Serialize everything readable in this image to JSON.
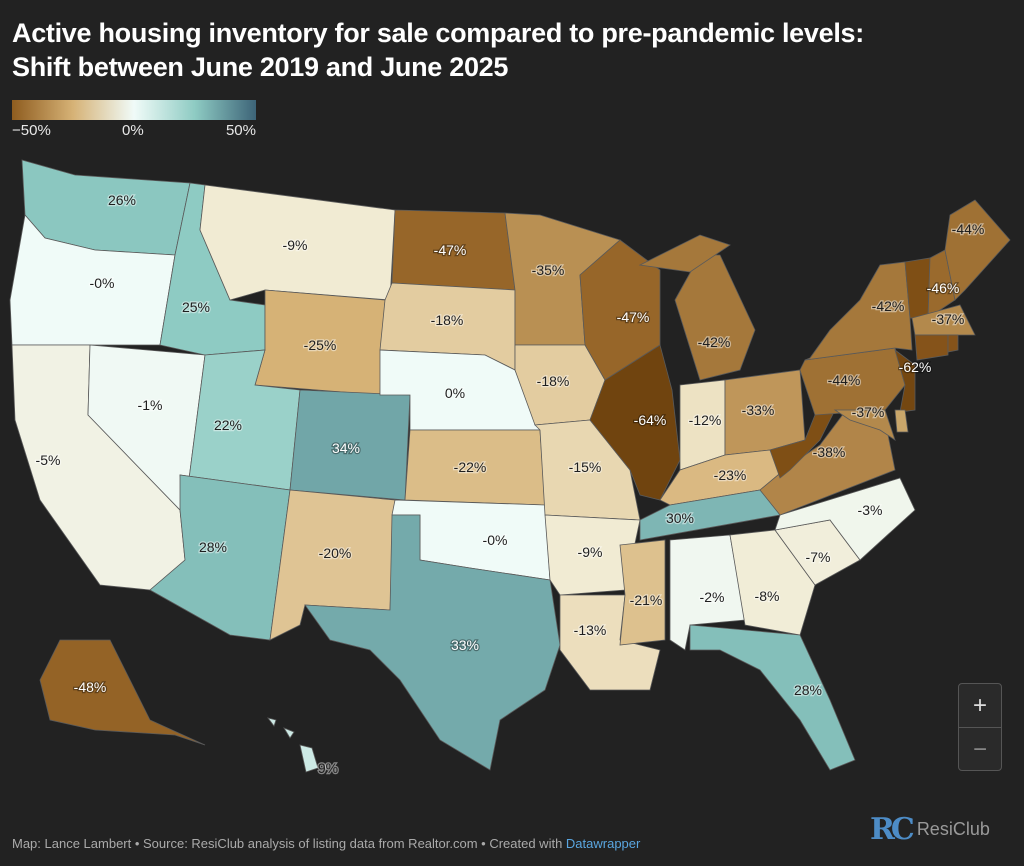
{
  "title": {
    "line1": "Active housing inventory for sale compared to pre-pandemic levels:",
    "line2": "Shift between June 2019 and June 2025"
  },
  "legend": {
    "min_label": "−50%",
    "mid_label": "0%",
    "max_label": "50%",
    "colors": [
      "#8e5c1f",
      "#d6b276",
      "#f0fbf8",
      "#8ecbc3",
      "#3d6478"
    ]
  },
  "chart_data": {
    "type": "choropleth",
    "title": "Active housing inventory for sale compared to pre-pandemic levels: Shift between June 2019 and June 2025",
    "scale_range": [
      -50,
      50
    ],
    "units": "% change",
    "states": [
      {
        "id": "WA",
        "value": 26,
        "label": "26%"
      },
      {
        "id": "OR",
        "value": 0,
        "label": "-0%"
      },
      {
        "id": "CA",
        "value": -5,
        "label": "-5%"
      },
      {
        "id": "NV",
        "value": -1,
        "label": "-1%"
      },
      {
        "id": "ID",
        "value": 25,
        "label": "25%"
      },
      {
        "id": "MT",
        "value": -9,
        "label": "-9%"
      },
      {
        "id": "WY",
        "value": -25,
        "label": "-25%"
      },
      {
        "id": "UT",
        "value": 22,
        "label": "22%"
      },
      {
        "id": "CO",
        "value": 34,
        "label": "34%"
      },
      {
        "id": "AZ",
        "value": 28,
        "label": "28%"
      },
      {
        "id": "NM",
        "value": -20,
        "label": "-20%"
      },
      {
        "id": "ND",
        "value": -47,
        "label": "-47%"
      },
      {
        "id": "SD",
        "value": -18,
        "label": "-18%"
      },
      {
        "id": "NE",
        "value": 0,
        "label": "0%"
      },
      {
        "id": "KS",
        "value": -22,
        "label": "-22%"
      },
      {
        "id": "OK",
        "value": 0,
        "label": "-0%"
      },
      {
        "id": "TX",
        "value": 33,
        "label": "33%"
      },
      {
        "id": "MN",
        "value": -35,
        "label": "-35%"
      },
      {
        "id": "IA",
        "value": -18,
        "label": "-18%"
      },
      {
        "id": "MO",
        "value": -15,
        "label": "-15%"
      },
      {
        "id": "AR",
        "value": -9,
        "label": "-9%"
      },
      {
        "id": "LA",
        "value": -13,
        "label": "-13%"
      },
      {
        "id": "WI",
        "value": -47,
        "label": "-47%"
      },
      {
        "id": "IL",
        "value": -64,
        "label": "-64%"
      },
      {
        "id": "MI",
        "value": -42,
        "label": "-42%"
      },
      {
        "id": "IN",
        "value": -12,
        "label": "-12%"
      },
      {
        "id": "OH",
        "value": -33,
        "label": "-33%"
      },
      {
        "id": "KY",
        "value": -23,
        "label": "-23%"
      },
      {
        "id": "TN",
        "value": 30,
        "label": "30%"
      },
      {
        "id": "MS",
        "value": -21,
        "label": "-21%"
      },
      {
        "id": "AL",
        "value": -2,
        "label": "-2%"
      },
      {
        "id": "GA",
        "value": -8,
        "label": "-8%"
      },
      {
        "id": "FL",
        "value": 28,
        "label": "28%"
      },
      {
        "id": "SC",
        "value": -7,
        "label": "-7%"
      },
      {
        "id": "NC",
        "value": -3,
        "label": "-3%"
      },
      {
        "id": "VA",
        "value": -38,
        "label": "-38%"
      },
      {
        "id": "WV",
        "value": null,
        "label": null,
        "color": "#7f4f15"
      },
      {
        "id": "PA",
        "value": -44,
        "label": "-44%"
      },
      {
        "id": "NY",
        "value": -42,
        "label": "-42%"
      },
      {
        "id": "NJ",
        "value": -62,
        "label": "-62%"
      },
      {
        "id": "MD",
        "value": -37,
        "label": "-37%"
      },
      {
        "id": "DE",
        "value": null,
        "label": null,
        "color": "#c9a66a"
      },
      {
        "id": "VT",
        "value": null,
        "label": null,
        "color": "#7f4f15"
      },
      {
        "id": "NH",
        "value": -46,
        "label": "-46%"
      },
      {
        "id": "ME",
        "value": -44,
        "label": "-44%"
      },
      {
        "id": "MA",
        "value": -37,
        "label": "-37%"
      },
      {
        "id": "CT",
        "value": null,
        "label": null,
        "color": "#85531a"
      },
      {
        "id": "RI",
        "value": null,
        "label": null,
        "color": "#85531a"
      },
      {
        "id": "AK",
        "value": -48,
        "label": "-48%"
      },
      {
        "id": "HI",
        "value": 9,
        "label": "9%"
      }
    ]
  },
  "zoom_controls": {
    "zoom_in": "+",
    "zoom_out": "−"
  },
  "footer": {
    "credit": "Map: Lance Lambert • Source: ResiClub analysis of listing data from Realtor.com • Created with ",
    "link": "Datawrapper"
  },
  "logo": {
    "mark": "RC",
    "name": "ResiClub"
  }
}
